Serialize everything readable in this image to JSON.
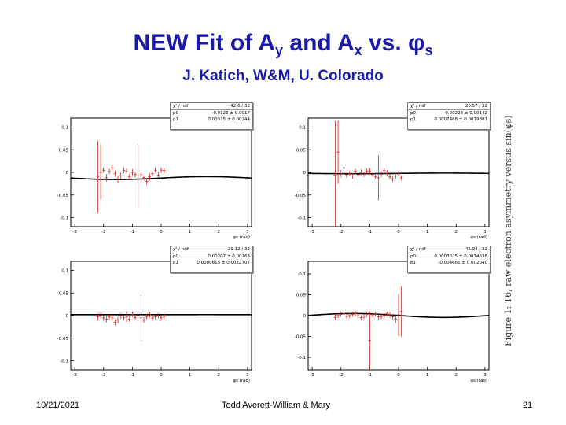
{
  "slide": {
    "title_main": "NEW Fit of A",
    "title_sub1": "y",
    "title_and": " and A",
    "title_sub2": "x",
    "title_vs": " vs. φ",
    "title_sub3": "s",
    "subtitle": "J. Katich, W&M, U. Colorado",
    "side_caption": "Figure 1: T6, raw electron asymmetry versus sin(φs)",
    "footer_date": "10/21/2021",
    "footer_author": "Todd Averett-William & Mary",
    "footer_page": "21"
  },
  "chart_data": [
    {
      "type": "scatter",
      "xlabel": "φs (rad)",
      "xlim": [
        -3.14,
        3.14
      ],
      "ylim": [
        -0.12,
        0.12
      ],
      "yticks": [
        -0.1,
        -0.05,
        0,
        0.05,
        0.1
      ],
      "xticks": [
        -3,
        -2,
        -1,
        0,
        1,
        2,
        3
      ],
      "stats": [
        [
          "χ² / ndf",
          "42.6 / 32"
        ],
        [
          "p0",
          "-0.0126 ± 0.0017"
        ],
        [
          "p1",
          "0.00325 ± 0.00244"
        ]
      ],
      "fit": {
        "p0": -0.0126,
        "p1": 0.00325,
        "offset": -0.01
      },
      "x": [
        -2.2,
        -2.1,
        -2.0,
        -1.9,
        -1.8,
        -1.7,
        -1.6,
        -1.5,
        -1.4,
        -1.3,
        -1.2,
        -1.1,
        -1.0,
        -0.9,
        -0.8,
        -0.7,
        -0.6,
        -0.5,
        -0.4,
        -0.3,
        -0.2,
        -0.1,
        0.0,
        0.1
      ],
      "y": [
        -0.01,
        0.0,
        0.005,
        -0.012,
        0.002,
        0.01,
        -0.003,
        -0.015,
        -0.008,
        0.004,
        0.003,
        -0.01,
        0.0,
        -0.005,
        -0.008,
        -0.005,
        -0.012,
        -0.02,
        -0.01,
        -0.003,
        0.005,
        -0.006,
        0.005,
        0.004
      ],
      "err": [
        0.08,
        0.06,
        0.006,
        0.008,
        0.006,
        0.005,
        0.007,
        0.008,
        0.007,
        0.006,
        0.005,
        0.006,
        0.007,
        0.006,
        0.07,
        0.006,
        0.006,
        0.007,
        0.008,
        0.006,
        0.006,
        0.007,
        0.006,
        0.006
      ]
    },
    {
      "type": "scatter",
      "xlabel": "φs (rad)",
      "xlim": [
        -3.14,
        3.14
      ],
      "ylim": [
        -0.12,
        0.12
      ],
      "yticks": [
        -0.1,
        -0.05,
        0,
        0.05,
        0.1
      ],
      "xticks": [
        -3,
        -2,
        -1,
        0,
        1,
        2,
        3
      ],
      "stats": [
        [
          "χ² / ndf",
          "20.57 / 32"
        ],
        [
          "p0",
          "-0.00226 ± 0.00142"
        ],
        [
          "p1",
          "0.0007468 ± 0.0019887"
        ]
      ],
      "fit": {
        "p0": -0.00226,
        "p1": 0.0007468,
        "offset": -0.003
      },
      "x": [
        -2.2,
        -2.1,
        -2.0,
        -1.9,
        -1.8,
        -1.7,
        -1.6,
        -1.5,
        -1.4,
        -1.3,
        -1.2,
        -1.1,
        -1.0,
        -0.9,
        -0.8,
        -0.7,
        -0.6,
        -0.5,
        -0.4,
        -0.3,
        -0.2,
        -0.1,
        0.0,
        0.1
      ],
      "y": [
        -0.006,
        0.045,
        -0.003,
        0.01,
        -0.005,
        -0.002,
        -0.008,
        0.003,
        -0.005,
        0.0,
        -0.004,
        0.002,
        0.003,
        -0.005,
        -0.01,
        -0.012,
        -0.004,
        0.004,
        -0.002,
        -0.01,
        -0.015,
        -0.008,
        -0.003,
        -0.012
      ],
      "err": [
        0.12,
        0.07,
        0.008,
        0.006,
        0.007,
        0.006,
        0.006,
        0.005,
        0.006,
        0.007,
        0.006,
        0.006,
        0.007,
        0.006,
        0.005,
        0.05,
        0.006,
        0.006,
        0.007,
        0.006,
        0.006,
        0.007,
        0.006,
        0.006
      ]
    },
    {
      "type": "scatter",
      "xlabel": "φs (rad)",
      "xlim": [
        -3.14,
        3.14
      ],
      "ylim": [
        -0.12,
        0.12
      ],
      "yticks": [
        -0.1,
        -0.05,
        0,
        0.05,
        0.1
      ],
      "xticks": [
        -3,
        -2,
        -1,
        0,
        1,
        2,
        3
      ],
      "stats": [
        [
          "χ² / ndf",
          "29.12 / 32"
        ],
        [
          "p0",
          "0.00207 ± 0.00163"
        ],
        [
          "p1",
          "0.0000815 ± 0.0022707"
        ]
      ],
      "fit": {
        "p0": 0.00207,
        "p1": 8.15e-05,
        "offset": -0.002
      },
      "x": [
        -2.2,
        -2.1,
        -2.0,
        -1.9,
        -1.8,
        -1.7,
        -1.6,
        -1.5,
        -1.4,
        -1.3,
        -1.2,
        -1.1,
        -1.0,
        -0.9,
        -0.8,
        -0.7,
        -0.6,
        -0.5,
        -0.4,
        -0.3,
        -0.2,
        -0.1,
        0.0,
        0.1
      ],
      "y": [
        -0.003,
        0.0,
        -0.005,
        -0.008,
        -0.002,
        -0.005,
        -0.015,
        -0.01,
        0.0,
        -0.005,
        -0.002,
        -0.008,
        0.003,
        -0.004,
        0.0,
        -0.005,
        -0.01,
        -0.002,
        0.002,
        -0.005,
        -0.003,
        0.0,
        -0.005,
        -0.002
      ],
      "err": [
        0.008,
        0.006,
        0.006,
        0.007,
        0.006,
        0.006,
        0.006,
        0.007,
        0.006,
        0.006,
        0.012,
        0.006,
        0.006,
        0.006,
        0.007,
        0.05,
        0.006,
        0.006,
        0.006,
        0.007,
        0.006,
        0.006,
        0.006,
        0.006
      ]
    },
    {
      "type": "scatter",
      "xlabel": "φs (rad)",
      "xlim": [
        -3.14,
        3.14
      ],
      "ylim": [
        -0.13,
        0.13
      ],
      "yticks": [
        -0.1,
        -0.05,
        0,
        0.05,
        0.1
      ],
      "xticks": [
        -3,
        -2,
        -1,
        0,
        1,
        2,
        3
      ],
      "stats": [
        [
          "χ² / ndf",
          "45.94 / 32"
        ],
        [
          "p0",
          "0.0003075 ± 0.0014638"
        ],
        [
          "p1",
          "-0.004661 ± 0.002040"
        ]
      ],
      "fit": {
        "p0": 0.0003075,
        "p1": -0.004661,
        "offset": 0.0
      },
      "x": [
        -2.2,
        -2.1,
        -2.0,
        -1.9,
        -1.8,
        -1.7,
        -1.6,
        -1.5,
        -1.4,
        -1.3,
        -1.2,
        -1.1,
        -1.0,
        -0.9,
        -0.8,
        -0.7,
        -0.6,
        -0.5,
        -0.4,
        -0.3,
        -0.2,
        -0.1,
        0.0,
        0.1
      ],
      "y": [
        -0.004,
        0.0,
        0.003,
        0.005,
        -0.002,
        0.0,
        0.003,
        0.005,
        0.0,
        -0.005,
        -0.002,
        0.003,
        -0.06,
        0.0,
        0.004,
        -0.003,
        -0.002,
        0.0,
        0.004,
        0.002,
        -0.003,
        -0.008,
        0.002,
        0.01
      ],
      "err": [
        0.006,
        0.006,
        0.006,
        0.007,
        0.006,
        0.006,
        0.006,
        0.007,
        0.006,
        0.006,
        0.006,
        0.006,
        0.07,
        0.006,
        0.006,
        0.007,
        0.006,
        0.006,
        0.006,
        0.007,
        0.006,
        0.01,
        0.05,
        0.06
      ]
    }
  ]
}
